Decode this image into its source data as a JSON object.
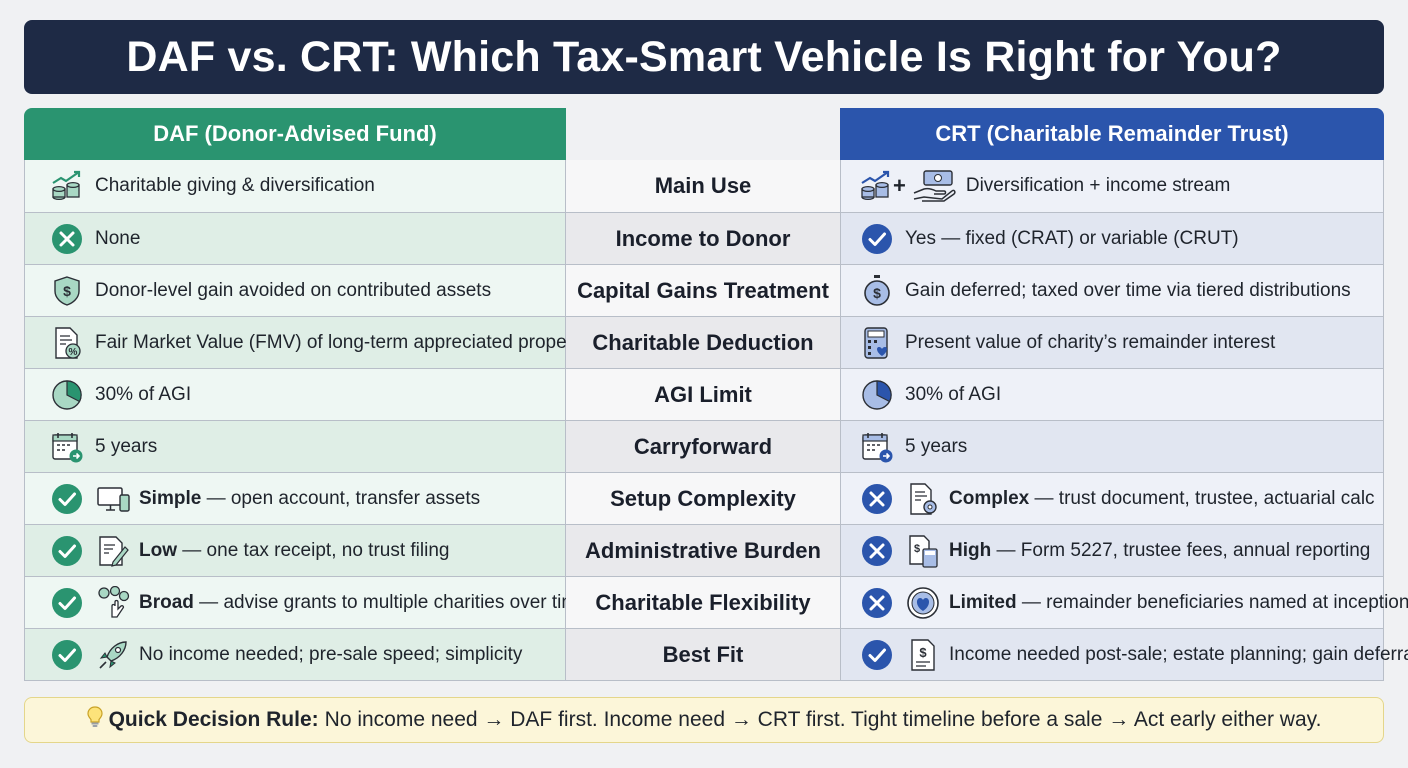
{
  "title": "DAF vs. CRT: Which Tax-Smart Vehicle Is Right for You?",
  "headers": {
    "daf": "DAF (Donor-Advised Fund)",
    "crt": "CRT (Charitable Remainder Trust)"
  },
  "colors": {
    "title_bg": "#1e2a45",
    "daf_accent": "#2a9470",
    "crt_accent": "#2b55ac",
    "footer_bg": "#fcf6d9"
  },
  "rows": [
    {
      "criterion": "Main Use",
      "daf": {
        "icon": "growth-coins-icon",
        "strong": "",
        "text": "Charitable giving & diversification"
      },
      "crt": {
        "icon": "growth-coins-plus-cash-hand-icon",
        "strong": "",
        "text": "Diversification + income stream"
      }
    },
    {
      "criterion": "Income to Donor",
      "daf": {
        "icon": "x-circle-icon",
        "strong": "",
        "text": "None"
      },
      "crt": {
        "icon": "check-circle-icon",
        "strong": "",
        "text": "Yes — fixed (CRAT) or variable (CRUT)"
      }
    },
    {
      "criterion": "Capital Gains Treatment",
      "daf": {
        "icon": "shield-dollar-icon",
        "strong": "",
        "text": "Donor-level gain avoided on contributed assets"
      },
      "crt": {
        "icon": "stopwatch-dollar-icon",
        "strong": "",
        "text": "Gain deferred; taxed over time via tiered distributions"
      }
    },
    {
      "criterion": "Charitable Deduction",
      "daf": {
        "icon": "document-percent-icon",
        "strong": "",
        "text": "Fair Market Value (FMV) of long-term appreciated property"
      },
      "crt": {
        "icon": "calculator-heart-icon",
        "strong": "",
        "text": "Present value of charity’s remainder interest"
      }
    },
    {
      "criterion": "AGI Limit",
      "daf": {
        "icon": "pie-chart-icon",
        "strong": "",
        "text": "30% of AGI"
      },
      "crt": {
        "icon": "pie-chart-icon",
        "strong": "",
        "text": "30% of AGI"
      }
    },
    {
      "criterion": "Carryforward",
      "daf": {
        "icon": "calendar-arrow-icon",
        "strong": "",
        "text": "5 years"
      },
      "crt": {
        "icon": "calendar-arrow-icon",
        "strong": "",
        "text": "5 years"
      }
    },
    {
      "criterion": "Setup Complexity",
      "daf": {
        "icon": "check-circle-icon",
        "icon2": "computer-devices-icon",
        "strong": "Simple",
        "text": " — open account, transfer assets"
      },
      "crt": {
        "icon": "x-circle-icon",
        "icon2": "document-gear-icon",
        "strong": "Complex",
        "text": " — trust document, trustee, actuarial calc"
      }
    },
    {
      "criterion": "Administrative Burden",
      "daf": {
        "icon": "check-circle-icon",
        "icon2": "document-pen-icon",
        "strong": "Low",
        "text": " — one tax receipt, no trust filing"
      },
      "crt": {
        "icon": "x-circle-icon",
        "icon2": "document-calculator-icon",
        "strong": "High",
        "text": " — Form 5227, trustee fees, annual reporting"
      }
    },
    {
      "criterion": "Charitable Flexibility",
      "daf": {
        "icon": "check-circle-icon",
        "icon2": "hand-coins-icon",
        "strong": "Broad",
        "text": " — advise grants to multiple charities over time"
      },
      "crt": {
        "icon": "x-circle-icon",
        "icon2": "seal-heart-icon",
        "strong": "Limited",
        "text": " — remainder beneficiaries named at inception"
      }
    },
    {
      "criterion": "Best Fit",
      "daf": {
        "icon": "check-circle-icon",
        "icon2": "rocket-icon",
        "strong": "",
        "text": "No income needed; pre-sale speed; simplicity"
      },
      "crt": {
        "icon": "check-circle-icon",
        "icon2": "document-dollar-icon",
        "strong": "",
        "text": "Income needed post-sale; estate planning; gain deferral"
      }
    }
  ],
  "footer": {
    "icon": "lightbulb-icon",
    "label": "Quick Decision Rule:",
    "text": "No income need → DAF first. Income need → CRT first. Tight timeline before a sale → Act early either way."
  }
}
